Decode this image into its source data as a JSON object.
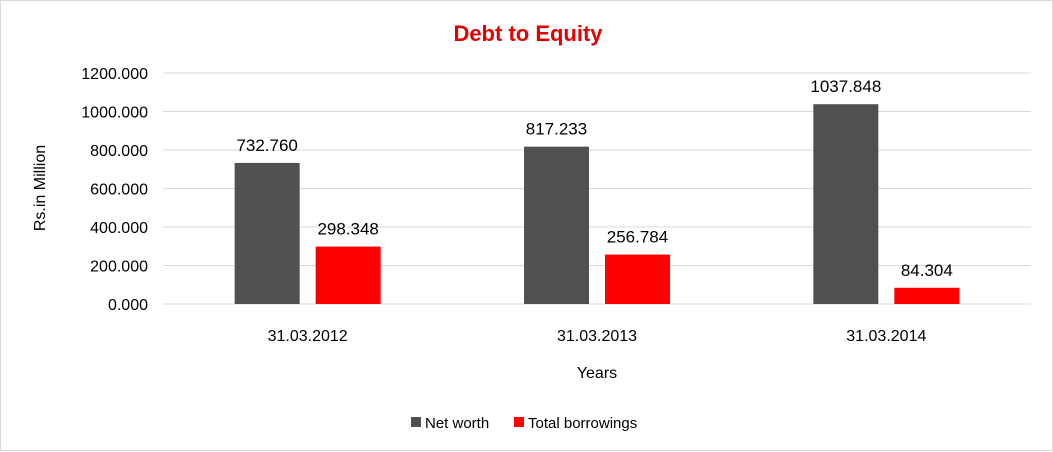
{
  "colors": {
    "net_worth": "#505050",
    "total_borrowings": "#ff0000",
    "title": "#e60000",
    "gridline": "#d9d9d9"
  },
  "chart_data": {
    "type": "bar",
    "title": "Debt to Equity",
    "xlabel": "Years",
    "ylabel": "Rs.in Million",
    "categories": [
      "31.03.2012",
      "31.03.2013",
      "31.03.2014"
    ],
    "series": [
      {
        "name": "Net worth",
        "values": [
          732.76,
          817.233,
          1037.848
        ],
        "labels": [
          "732.760",
          "817.233",
          "1037.848"
        ]
      },
      {
        "name": "Total borrowings",
        "values": [
          298.348,
          256.784,
          84.304
        ],
        "labels": [
          "298.348",
          "256.784",
          "84.304"
        ]
      }
    ],
    "ylim": [
      0,
      1200
    ],
    "yticks": [
      0,
      200,
      400,
      600,
      800,
      1000,
      1200
    ],
    "ytick_labels": [
      "0.000",
      "200.000",
      "400.000",
      "600.000",
      "800.000",
      "1000.000",
      "1200.000"
    ],
    "grid": true,
    "legend_position": "bottom"
  }
}
